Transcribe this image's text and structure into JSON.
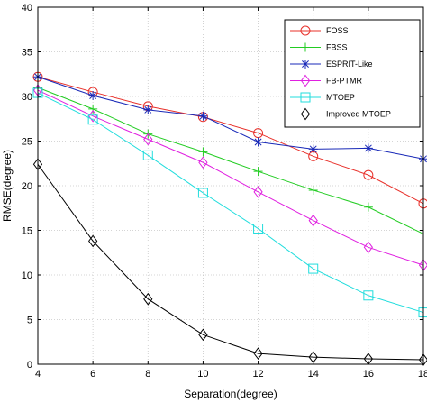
{
  "chart_data": {
    "type": "line",
    "xlabel": "Separation(degree)",
    "ylabel": "RMSE(degree)",
    "xlim": [
      4,
      18
    ],
    "ylim": [
      0,
      40
    ],
    "x": [
      4,
      6,
      8,
      10,
      12,
      14,
      16,
      18
    ],
    "xticks": [
      4,
      6,
      8,
      10,
      12,
      14,
      16,
      18
    ],
    "yticks": [
      0,
      5,
      10,
      15,
      20,
      25,
      30,
      35,
      40
    ],
    "grid": true,
    "legend_position": "top-right",
    "series": [
      {
        "name": "FOSS",
        "color": "#e8302a",
        "marker": "circle",
        "values": [
          32.2,
          30.5,
          28.9,
          27.7,
          25.9,
          23.3,
          21.2,
          18.0
        ]
      },
      {
        "name": "FBSS",
        "color": "#22cc22",
        "marker": "plus",
        "values": [
          31.0,
          28.6,
          25.8,
          23.8,
          21.6,
          19.5,
          17.6,
          14.6
        ]
      },
      {
        "name": "ESPRIT-Like",
        "color": "#1a2ab8",
        "marker": "asterisk",
        "values": [
          32.2,
          30.1,
          28.5,
          27.8,
          24.9,
          24.1,
          24.2,
          23.0
        ]
      },
      {
        "name": "FB-PTMR",
        "color": "#e020e0",
        "marker": "diamond",
        "values": [
          30.7,
          27.8,
          25.2,
          22.6,
          19.3,
          16.1,
          13.1,
          11.1
        ]
      },
      {
        "name": "MTOEP",
        "color": "#22dddd",
        "marker": "square",
        "values": [
          30.4,
          27.4,
          23.4,
          19.2,
          15.2,
          10.7,
          7.7,
          5.8
        ]
      },
      {
        "name": "Improved MTOEP",
        "color": "#000000",
        "marker": "diamond",
        "values": [
          22.4,
          13.8,
          7.3,
          3.3,
          1.2,
          0.8,
          0.6,
          0.5
        ]
      }
    ]
  }
}
